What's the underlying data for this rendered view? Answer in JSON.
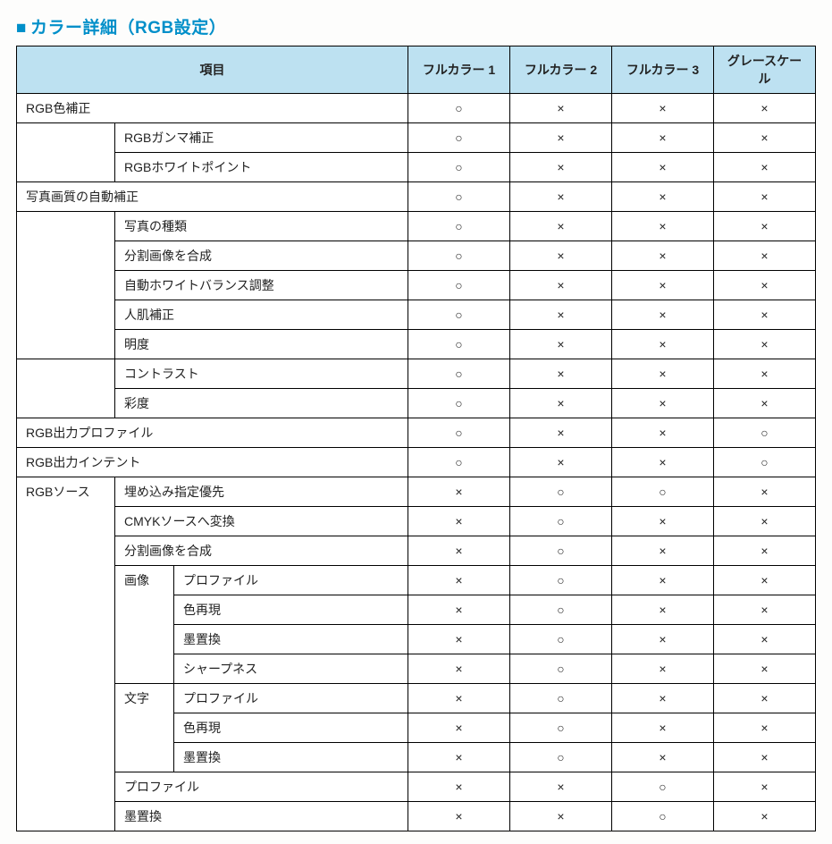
{
  "heading": {
    "marker": "■",
    "text": "カラー詳細（RGB設定）"
  },
  "columns": {
    "item": "項目",
    "c1": "フルカラー 1",
    "c2": "フルカラー 2",
    "c3": "フルカラー 3",
    "c4": "グレースケール"
  },
  "mark": {
    "yes": "○",
    "no": "×"
  },
  "rows": {
    "r0": {
      "l1": "RGB色補正",
      "v": [
        "yes",
        "no",
        "no",
        "no"
      ]
    },
    "r1": {
      "l2": "RGBガンマ補正",
      "v": [
        "yes",
        "no",
        "no",
        "no"
      ]
    },
    "r2": {
      "l2": "RGBホワイトポイント",
      "v": [
        "yes",
        "no",
        "no",
        "no"
      ]
    },
    "r3": {
      "l1": "写真画質の自動補正",
      "v": [
        "yes",
        "no",
        "no",
        "no"
      ]
    },
    "r4": {
      "l2": "写真の種類",
      "v": [
        "yes",
        "no",
        "no",
        "no"
      ]
    },
    "r5": {
      "l2": "分割画像を合成",
      "v": [
        "yes",
        "no",
        "no",
        "no"
      ]
    },
    "r6": {
      "l2": "自動ホワイトバランス調整",
      "v": [
        "yes",
        "no",
        "no",
        "no"
      ]
    },
    "r7": {
      "l2": "人肌補正",
      "v": [
        "yes",
        "no",
        "no",
        "no"
      ]
    },
    "r8": {
      "l2": "明度",
      "v": [
        "yes",
        "no",
        "no",
        "no"
      ]
    },
    "r9": {
      "l2": "コントラスト",
      "v": [
        "yes",
        "no",
        "no",
        "no"
      ]
    },
    "r10": {
      "l2": "彩度",
      "v": [
        "yes",
        "no",
        "no",
        "no"
      ]
    },
    "r11": {
      "l1": "RGB出力プロファイル",
      "v": [
        "yes",
        "no",
        "no",
        "yes"
      ]
    },
    "r12": {
      "l1": "RGB出力インテント",
      "v": [
        "yes",
        "no",
        "no",
        "yes"
      ]
    },
    "r13": {
      "l1": "RGBソース",
      "l2": "埋め込み指定優先",
      "v": [
        "no",
        "yes",
        "yes",
        "no"
      ]
    },
    "r14": {
      "l2": "CMYKソースへ変換",
      "v": [
        "no",
        "yes",
        "no",
        "no"
      ]
    },
    "r15": {
      "l2": "分割画像を合成",
      "v": [
        "no",
        "yes",
        "no",
        "no"
      ]
    },
    "r16": {
      "l2b": "画像",
      "l3": "プロファイル",
      "v": [
        "no",
        "yes",
        "no",
        "no"
      ]
    },
    "r17": {
      "l3": "色再現",
      "v": [
        "no",
        "yes",
        "no",
        "no"
      ]
    },
    "r18": {
      "l3": "墨置換",
      "v": [
        "no",
        "yes",
        "no",
        "no"
      ]
    },
    "r19": {
      "l3": "シャープネス",
      "v": [
        "no",
        "yes",
        "no",
        "no"
      ]
    },
    "r20": {
      "l2b": "文字",
      "l3": "プロファイル",
      "v": [
        "no",
        "yes",
        "no",
        "no"
      ]
    },
    "r21": {
      "l3": "色再現",
      "v": [
        "no",
        "yes",
        "no",
        "no"
      ]
    },
    "r22": {
      "l3": "墨置換",
      "v": [
        "no",
        "yes",
        "no",
        "no"
      ]
    },
    "r23": {
      "l2": "プロファイル",
      "v": [
        "no",
        "no",
        "yes",
        "no"
      ]
    },
    "r24": {
      "l2": "墨置換",
      "v": [
        "no",
        "no",
        "yes",
        "no"
      ]
    }
  },
  "style": {
    "heading_color": "#008fc9",
    "header_bg": "#bde1f1",
    "border_color": "#000000",
    "heading_fontsize": 19,
    "cell_fontsize": 14
  }
}
